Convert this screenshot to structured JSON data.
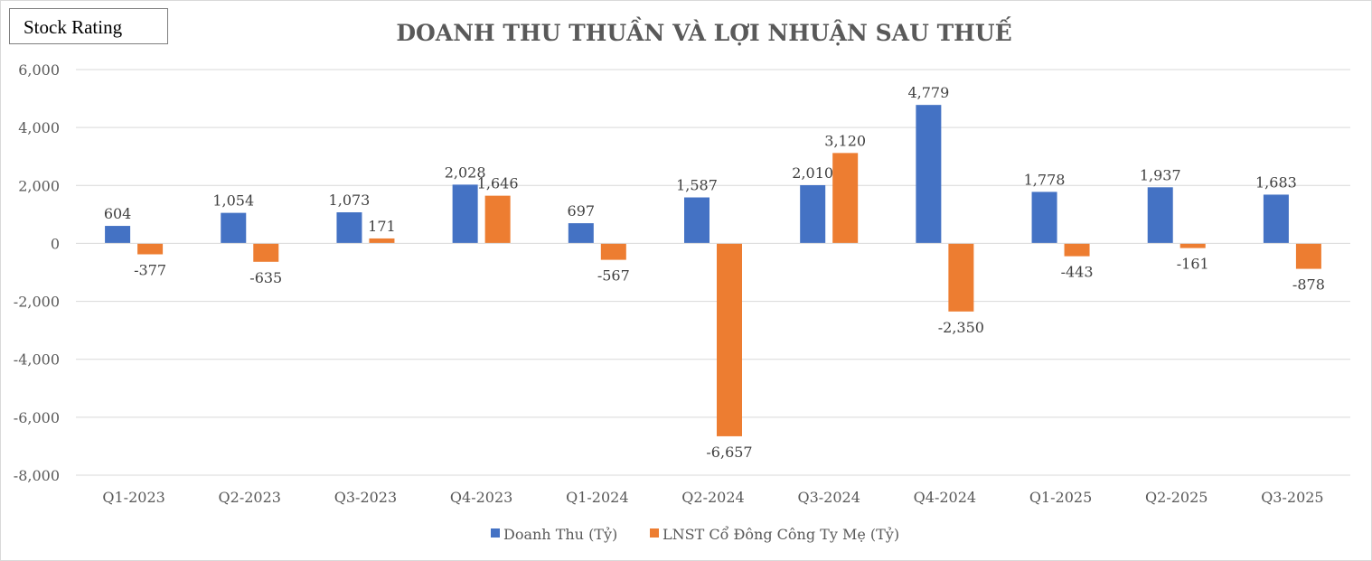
{
  "badge": {
    "label": "Stock Rating"
  },
  "chart_data": {
    "type": "bar",
    "title": "DOANH THU THUẦN VÀ LỢI NHUẬN SAU THUẾ",
    "xlabel": "",
    "ylabel": "",
    "categories": [
      "Q1-2023",
      "Q2-2023",
      "Q3-2023",
      "Q4-2023",
      "Q1-2024",
      "Q2-2024",
      "Q3-2024",
      "Q4-2024",
      "Q1-2025",
      "Q2-2025",
      "Q3-2025"
    ],
    "series": [
      {
        "name": "Doanh Thu (Tỷ)",
        "color": "#4472c4",
        "values": [
          604,
          1054,
          1073,
          2028,
          697,
          1587,
          2010,
          4779,
          1778,
          1937,
          1683
        ]
      },
      {
        "name": "LNST Cổ Đông Công Ty Mẹ (Tỷ)",
        "color": "#ed7d31",
        "values": [
          -377,
          -635,
          171,
          1646,
          -567,
          -6657,
          3120,
          -2350,
          -443,
          -161,
          -878
        ]
      }
    ],
    "ylim": [
      -8000,
      6000
    ],
    "yticks": [
      6000,
      4000,
      2000,
      0,
      -2000,
      -4000,
      -6000,
      -8000
    ],
    "ytick_labels": [
      "6,000",
      "4,000",
      "2,000",
      "0",
      "-2,000",
      "-4,000",
      "-6,000",
      "-8,000"
    ],
    "grid": true,
    "legend_position": "bottom"
  }
}
